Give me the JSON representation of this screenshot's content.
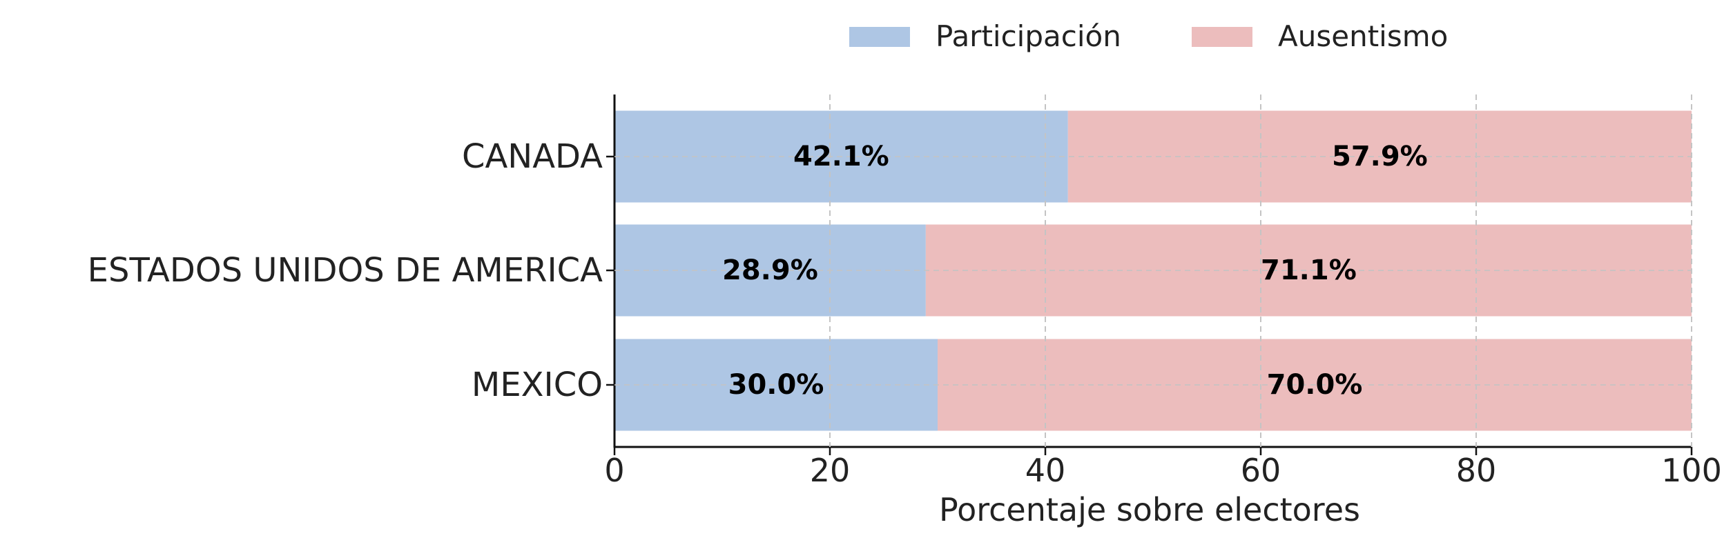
{
  "chart_data": {
    "type": "bar",
    "orientation": "horizontal",
    "stacked": true,
    "categories": [
      "CANADA",
      "ESTADOS UNIDOS DE AMERICA",
      "MEXICO"
    ],
    "series": [
      {
        "name": "Participación",
        "values": [
          42.1,
          28.9,
          30.0
        ],
        "color": "#aec6e4"
      },
      {
        "name": "Ausentismo",
        "values": [
          57.9,
          71.1,
          70.0
        ],
        "color": "#ecbdbd"
      }
    ],
    "data_labels": [
      [
        "42.1%",
        "28.9%",
        "30.0%"
      ],
      [
        "57.9%",
        "71.1%",
        "70.0%"
      ]
    ],
    "xlabel": "Porcentaje sobre electores",
    "ylabel": "",
    "xlim": [
      0,
      100
    ],
    "xticks": [
      0,
      20,
      40,
      60,
      80,
      100
    ],
    "xtick_labels": [
      "0",
      "20",
      "40",
      "60",
      "80",
      "100"
    ],
    "grid": true,
    "legend": "top-center"
  }
}
